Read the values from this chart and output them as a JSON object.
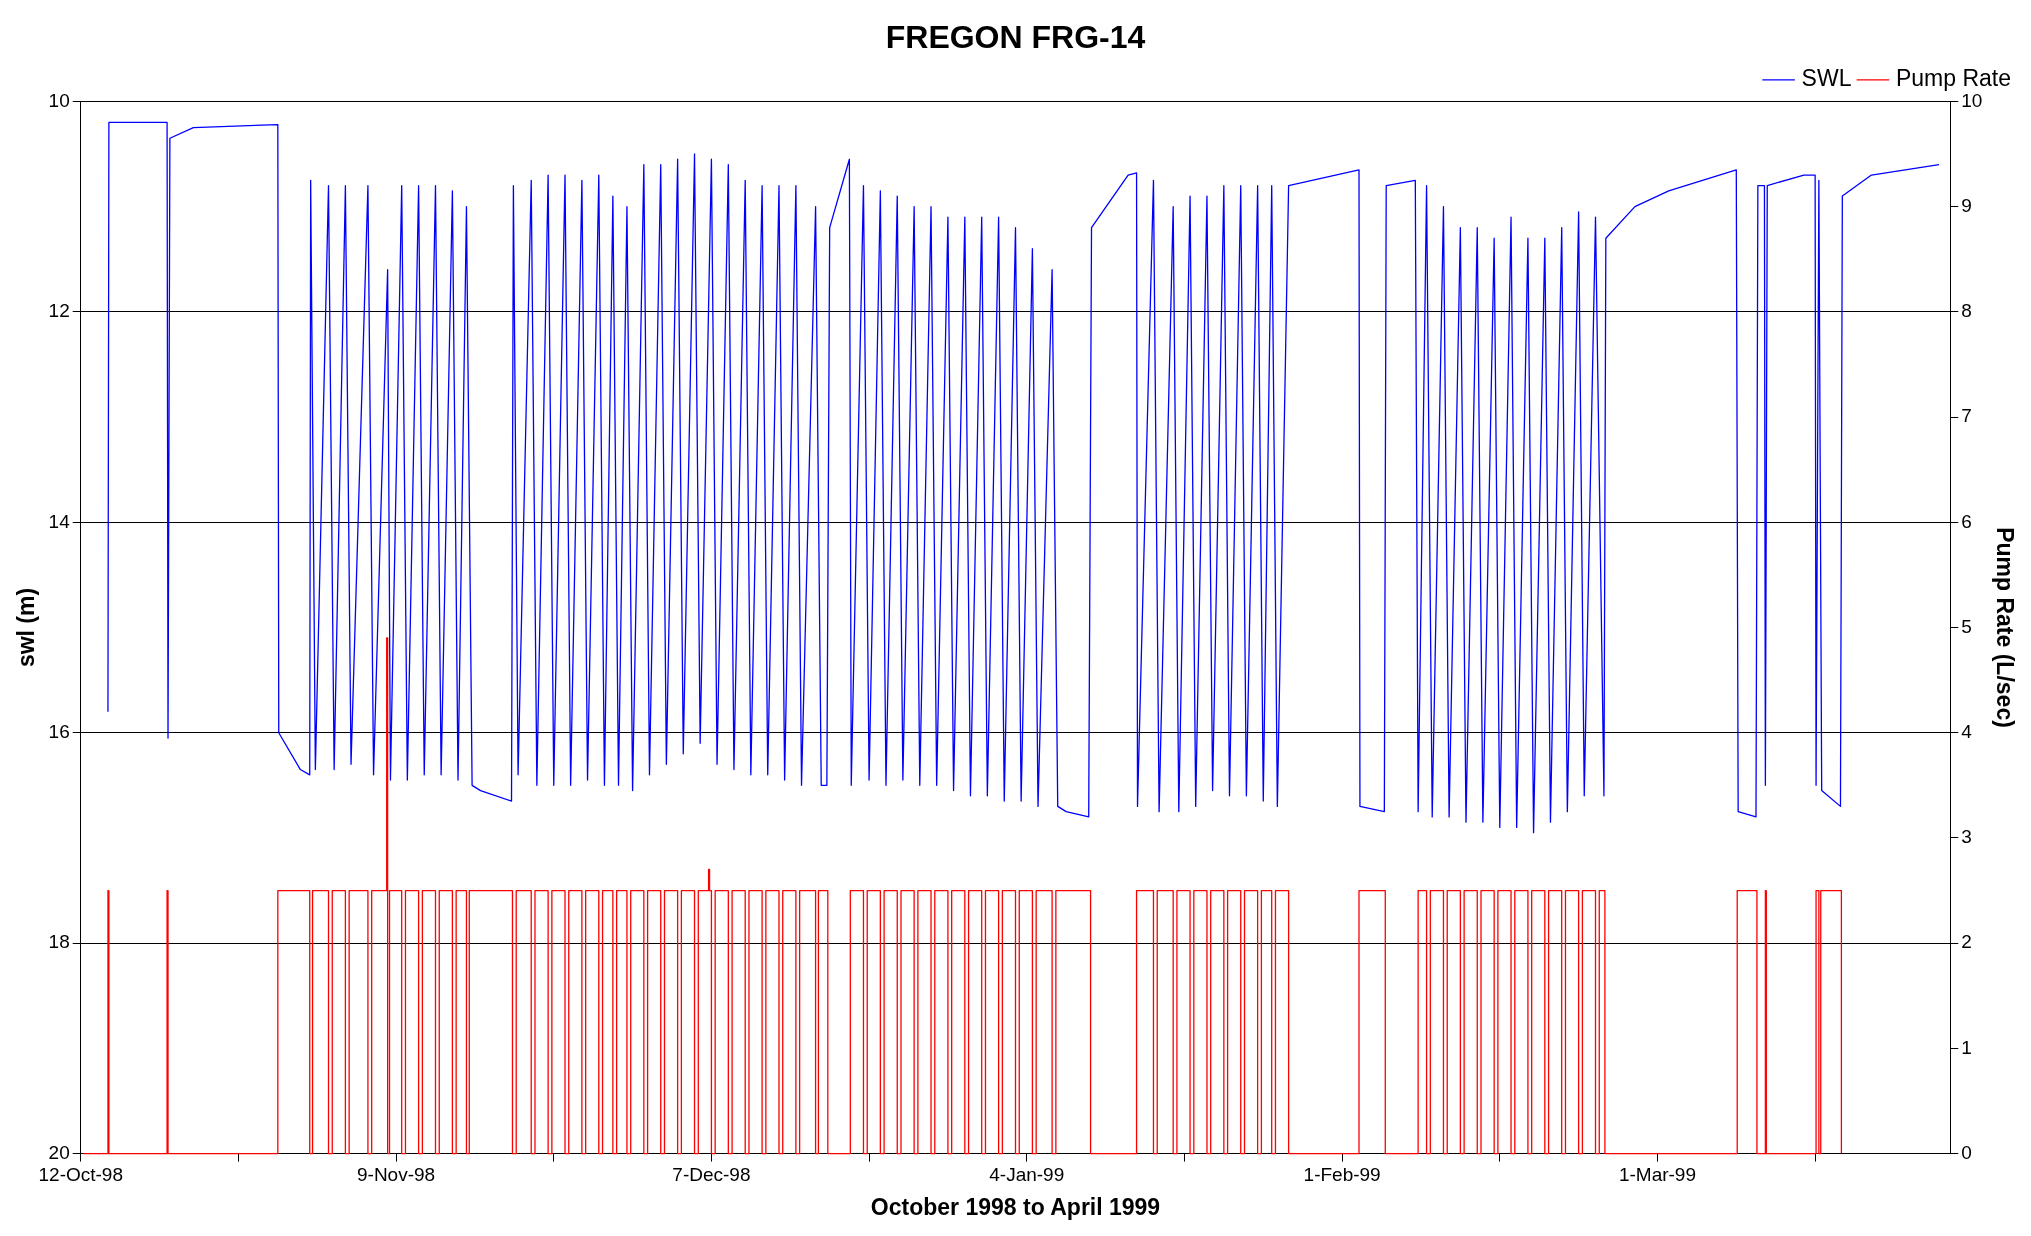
{
  "chart_data": {
    "type": "line",
    "title": "FREGON FRG-14",
    "xlabel": "October 1998 to April 1999",
    "ylabel": "swl (m)",
    "y2label": "Pump Rate (L/sec)",
    "xlim": [
      "1998-10-12",
      "1999-03-27"
    ],
    "xticks": [
      {
        "value": "1998-10-12",
        "label": "12-Oct-98"
      },
      {
        "value": "1998-10-26",
        "label": null
      },
      {
        "value": "1998-11-09",
        "label": "9-Nov-98"
      },
      {
        "value": "1998-11-23",
        "label": null
      },
      {
        "value": "1998-12-07",
        "label": "7-Dec-98"
      },
      {
        "value": "1998-12-21",
        "label": null
      },
      {
        "value": "1999-01-04",
        "label": "4-Jan-99"
      },
      {
        "value": "1999-01-18",
        "label": null
      },
      {
        "value": "1999-02-01",
        "label": "1-Feb-99"
      },
      {
        "value": "1999-02-15",
        "label": null
      },
      {
        "value": "1999-03-01",
        "label": "1-Mar-99"
      },
      {
        "value": "1999-03-15",
        "label": null
      }
    ],
    "ylim": [
      20,
      10
    ],
    "yticks": [
      10,
      12,
      14,
      16,
      18,
      20
    ],
    "y2lim": [
      0,
      10
    ],
    "y2ticks": [
      0,
      1,
      2,
      3,
      4,
      5,
      6,
      7,
      8,
      9,
      10
    ],
    "grid": "y",
    "legend": "top right",
    "marker": "none",
    "line_style": "solid",
    "series": [
      {
        "name": "SWL",
        "type": "line",
        "color": "#0000ff",
        "x": [
          "1998-10-14T10:00",
          "1998-10-14T12:00",
          "1998-10-19T16:00",
          "1998-10-19T18:00",
          "1998-10-19T22:00",
          "1998-10-22T00:00",
          "1998-10-29T12:00",
          "1998-10-29T14:00",
          "1998-10-31T12:00",
          "1998-11-01T08:00",
          "1998-11-01T10:00",
          "1998-11-01T20:00",
          "1998-11-03T00:00",
          "1998-11-03T12:00",
          "1998-11-04T12:00",
          "1998-11-05T00:00",
          "1998-11-06T12:00",
          "1998-11-07T00:00",
          "1998-11-08T06:00",
          "1998-11-08T12:00",
          "1998-11-09T12:00",
          "1998-11-10T00:00",
          "1998-11-11T00:00",
          "1998-11-11T12:00",
          "1998-11-12T12:00",
          "1998-11-13T00:00",
          "1998-11-14T00:00",
          "1998-11-14T12:00",
          "1998-11-15T06:00",
          "1998-11-15T18:00",
          "1998-11-16T12:00",
          "1998-11-19T06:00",
          "1998-11-19T10:00",
          "1998-11-19T20:00",
          "1998-11-21T00:00",
          "1998-11-21T12:00",
          "1998-11-22T12:00",
          "1998-11-23T00:00",
          "1998-11-24T00:00",
          "1998-11-24T12:00",
          "1998-11-25T12:00",
          "1998-11-26T00:00",
          "1998-11-27T00:00",
          "1998-11-27T12:00",
          "1998-11-28T06:00",
          "1998-11-28T18:00",
          "1998-11-29T12:00",
          "1998-11-30T00:00",
          "1998-12-01T00:00",
          "1998-12-01T12:00",
          "1998-12-02T12:00",
          "1998-12-03T00:00",
          "1998-12-04T00:00",
          "1998-12-04T12:00",
          "1998-12-05T12:00",
          "1998-12-06T00:00",
          "1998-12-07T00:00",
          "1998-12-07T12:00",
          "1998-12-08T12:00",
          "1998-12-09T00:00",
          "1998-12-10T00:00",
          "1998-12-10T12:00",
          "1998-12-11T12:00",
          "1998-12-12T00:00",
          "1998-12-13T00:00",
          "1998-12-13T12:00",
          "1998-12-14T12:00",
          "1998-12-15T00:00",
          "1998-12-16T06:00",
          "1998-12-16T18:00",
          "1998-12-17T06:00",
          "1998-12-17T12:00",
          "1998-12-19T06:00",
          "1998-12-19T10:00",
          "1998-12-20T12:00",
          "1998-12-21T00:00",
          "1998-12-22T00:00",
          "1998-12-22T12:00",
          "1998-12-23T12:00",
          "1998-12-24T00:00",
          "1998-12-25T00:00",
          "1998-12-25T12:00",
          "1998-12-26T12:00",
          "1998-12-27T00:00",
          "1998-12-28T00:00",
          "1998-12-28T12:00",
          "1998-12-29T12:00",
          "1998-12-30T00:00",
          "1998-12-31T00:00",
          "1998-12-31T12:00",
          "1999-01-01T12:00",
          "1999-01-02T00:00",
          "1999-01-03T00:00",
          "1999-01-03T12:00",
          "1999-01-04T12:00",
          "1999-01-05T00:00",
          "1999-01-06T06:00",
          "1999-01-06T18:00",
          "1999-01-07T12:00",
          "1999-01-09T12:00",
          "1999-01-09T18:00",
          "1999-01-13T00:00",
          "1999-01-13T18:00",
          "1999-01-13T20:00",
          "1999-01-15T06:00",
          "1999-01-15T18:00",
          "1999-01-17T00:00",
          "1999-01-17T12:00",
          "1999-01-18T12:00",
          "1999-01-19T00:00",
          "1999-01-20T00:00",
          "1999-01-20T12:00",
          "1999-01-21T12:00",
          "1999-01-22T00:00",
          "1999-01-23T00:00",
          "1999-01-23T12:00",
          "1999-01-24T12:00",
          "1999-01-25T00:00",
          "1999-01-25T18:00",
          "1999-01-26T06:00",
          "1999-01-27T06:00",
          "1999-02-02T12:00",
          "1999-02-02T14:00",
          "1999-02-04T18:00",
          "1999-02-04T22:00",
          "1999-02-07T12:00",
          "1999-02-07T18:00",
          "1999-02-08T12:00",
          "1999-02-09T00:00",
          "1999-02-10T00:00",
          "1999-02-10T12:00",
          "1999-02-11T12:00",
          "1999-02-12T00:00",
          "1999-02-13T00:00",
          "1999-02-13T12:00",
          "1999-02-14T12:00",
          "1999-02-15T00:00",
          "1999-02-16T00:00",
          "1999-02-16T12:00",
          "1999-02-17T12:00",
          "1999-02-18T00:00",
          "1999-02-19T00:00",
          "1999-02-19T12:00",
          "1999-02-20T12:00",
          "1999-02-21T00:00",
          "1999-02-22T00:00",
          "1999-02-22T12:00",
          "1999-02-23T12:00",
          "1999-02-24T06:00",
          "1999-02-24T10:00",
          "1999-02-27T00:00",
          "1999-03-02T00:00",
          "1999-03-08T00:00",
          "1999-03-08T04:00",
          "1999-03-09T18:00",
          "1999-03-09T22:00",
          "1999-03-10T12:00",
          "1999-03-10T14:00",
          "1999-03-10T18:00",
          "1999-03-14T00:00",
          "1999-03-15T00:00",
          "1999-03-15T02:00",
          "1999-03-15T08:00",
          "1999-03-15T14:00",
          "1999-03-17T06:00",
          "1999-03-17T10:00",
          "1999-03-20T00:00",
          "1999-03-26T00:00"
        ],
        "values": [
          15.8,
          10.2,
          10.2,
          16.05,
          10.35,
          10.25,
          10.22,
          16.0,
          16.35,
          16.4,
          10.75,
          16.35,
          10.8,
          16.35,
          10.8,
          16.3,
          10.8,
          16.4,
          11.6,
          16.45,
          10.8,
          16.45,
          10.8,
          16.4,
          10.8,
          16.4,
          10.85,
          16.45,
          11.0,
          16.5,
          16.55,
          16.65,
          10.8,
          16.4,
          10.75,
          16.5,
          10.7,
          16.5,
          10.7,
          16.5,
          10.75,
          16.45,
          10.7,
          16.5,
          10.9,
          16.5,
          11.0,
          16.55,
          10.6,
          16.4,
          10.6,
          16.3,
          10.55,
          16.2,
          10.5,
          16.1,
          10.55,
          16.3,
          10.6,
          16.35,
          10.75,
          16.4,
          10.8,
          16.4,
          10.8,
          16.45,
          10.8,
          16.5,
          11.0,
          16.5,
          16.5,
          11.2,
          10.55,
          16.5,
          10.8,
          16.45,
          10.85,
          16.5,
          10.9,
          16.45,
          11.0,
          16.5,
          11.0,
          16.5,
          11.1,
          16.55,
          11.1,
          16.6,
          11.1,
          16.6,
          11.1,
          16.65,
          11.2,
          16.65,
          11.4,
          16.7,
          11.6,
          16.7,
          16.75,
          16.8,
          11.2,
          10.7,
          10.68,
          16.7,
          10.75,
          16.75,
          11.0,
          16.75,
          10.9,
          16.7,
          10.9,
          16.55,
          10.8,
          16.6,
          10.8,
          16.6,
          10.8,
          16.65,
          10.8,
          16.7,
          10.8,
          10.65,
          16.7,
          16.75,
          10.8,
          10.75,
          16.75,
          10.8,
          16.8,
          11.0,
          16.8,
          11.2,
          16.85,
          11.2,
          16.85,
          11.3,
          16.9,
          11.1,
          16.9,
          11.3,
          16.95,
          11.3,
          16.85,
          11.2,
          16.75,
          11.05,
          16.6,
          11.1,
          16.6,
          11.3,
          11.0,
          10.85,
          10.65,
          16.75,
          16.8,
          10.8,
          10.8,
          16.5,
          10.8,
          10.7,
          10.7,
          16.5,
          10.75,
          16.55,
          16.7,
          10.9,
          10.7,
          10.6
        ]
      },
      {
        "name": "Pump Rate",
        "type": "step",
        "axis": "y2",
        "color": "#ff0000",
        "x": [
          "1998-10-12T06:00",
          "1998-10-14T10:00",
          "1998-10-14T12:00",
          "1998-10-19T16:00",
          "1998-10-19T18:00",
          "1998-10-29T12:00",
          "1998-11-01T08:00",
          "1998-11-01T14:00",
          "1998-11-03T00:00",
          "1998-11-03T08:00",
          "1998-11-04T12:00",
          "1998-11-04T20:00",
          "1998-11-06T12:00",
          "1998-11-06T20:00",
          "1998-11-08T04:00",
          "1998-11-08T06:00",
          "1998-11-08T10:00",
          "1998-11-09T12:00",
          "1998-11-09T20:00",
          "1998-11-11T00:00",
          "1998-11-11T08:00",
          "1998-11-12T12:00",
          "1998-11-12T20:00",
          "1998-11-14T00:00",
          "1998-11-14T08:00",
          "1998-11-15T06:00",
          "1998-11-15T12:00",
          "1998-11-19T08:00",
          "1998-11-19T16:00",
          "1998-11-21T00:00",
          "1998-11-21T08:00",
          "1998-11-22T12:00",
          "1998-11-22T20:00",
          "1998-11-24T00:00",
          "1998-11-24T08:00",
          "1998-11-25T12:00",
          "1998-11-25T20:00",
          "1998-11-27T00:00",
          "1998-11-27T08:00",
          "1998-11-28T06:00",
          "1998-11-28T14:00",
          "1998-11-29T12:00",
          "1998-11-29T20:00",
          "1998-12-01T00:00",
          "1998-12-01T08:00",
          "1998-12-02T12:00",
          "1998-12-02T20:00",
          "1998-12-04T00:00",
          "1998-12-04T08:00",
          "1998-12-05T12:00",
          "1998-12-05T20:00",
          "1998-12-06T18:00",
          "1998-12-06T20:00",
          "1998-12-07T00:00",
          "1998-12-07T08:00",
          "1998-12-08T12:00",
          "1998-12-08T20:00",
          "1998-12-10T00:00",
          "1998-12-10T08:00",
          "1998-12-11T12:00",
          "1998-12-11T20:00",
          "1998-12-13T00:00",
          "1998-12-13T08:00",
          "1998-12-14T12:00",
          "1998-12-14T20:00",
          "1998-12-16T06:00",
          "1998-12-16T12:00",
          "1998-12-17T08:00",
          "1998-12-19T08:00",
          "1998-12-20T12:00",
          "1998-12-20T20:00",
          "1998-12-22T00:00",
          "1998-12-22T08:00",
          "1998-12-23T12:00",
          "1998-12-23T20:00",
          "1998-12-25T00:00",
          "1998-12-25T08:00",
          "1998-12-26T12:00",
          "1998-12-26T20:00",
          "1998-12-28T00:00",
          "1998-12-28T08:00",
          "1998-12-29T12:00",
          "1998-12-29T20:00",
          "1998-12-31T00:00",
          "1998-12-31T08:00",
          "1999-01-01T12:00",
          "1999-01-01T20:00",
          "1999-01-03T00:00",
          "1999-01-03T08:00",
          "1999-01-04T12:00",
          "1999-01-04T20:00",
          "1999-01-06T06:00",
          "1999-01-06T14:00",
          "1999-01-09T16:00",
          "1999-01-13T18:00",
          "1999-01-15T06:00",
          "1999-01-15T14:00",
          "1999-01-17T00:00",
          "1999-01-17T08:00",
          "1999-01-18T12:00",
          "1999-01-18T20:00",
          "1999-01-20T00:00",
          "1999-01-20T08:00",
          "1999-01-21T12:00",
          "1999-01-21T20:00",
          "1999-01-23T00:00",
          "1999-01-23T08:00",
          "1999-01-24T12:00",
          "1999-01-24T20:00",
          "1999-01-25T18:00",
          "1999-01-26T02:00",
          "1999-01-27T06:00",
          "1999-02-02T12:00",
          "1999-02-04T20:00",
          "1999-02-07T18:00",
          "1999-02-08T12:00",
          "1999-02-08T20:00",
          "1999-02-10T00:00",
          "1999-02-10T08:00",
          "1999-02-11T12:00",
          "1999-02-11T20:00",
          "1999-02-13T00:00",
          "1999-02-13T08:00",
          "1999-02-14T12:00",
          "1999-02-14T20:00",
          "1999-02-16T00:00",
          "1999-02-16T08:00",
          "1999-02-17T12:00",
          "1999-02-17T20:00",
          "1999-02-19T00:00",
          "1999-02-19T08:00",
          "1999-02-20T12:00",
          "1999-02-20T20:00",
          "1999-02-22T00:00",
          "1999-02-22T08:00",
          "1999-02-23T12:00",
          "1999-02-23T20:00",
          "1999-02-24T08:00",
          "1999-03-08T02:00",
          "1999-03-09T20:00",
          "1999-03-10T14:00",
          "1999-03-10T16:00",
          "1999-03-15T02:00",
          "1999-03-15T08:00",
          "1999-03-15T12:00",
          "1999-03-17T08:00"
        ],
        "values": [
          0,
          2.5,
          0,
          2.5,
          0,
          2.5,
          0,
          2.5,
          0,
          2.5,
          0,
          2.5,
          0,
          2.5,
          4.9,
          0,
          2.5,
          0,
          2.5,
          0,
          2.5,
          0,
          2.5,
          0,
          2.5,
          0,
          2.5,
          0,
          2.5,
          0,
          2.5,
          0,
          2.5,
          0,
          2.5,
          0,
          2.5,
          0,
          2.5,
          0,
          2.5,
          0,
          2.5,
          0,
          2.5,
          0,
          2.5,
          0,
          2.5,
          0,
          2.5,
          2.7,
          2.5,
          0,
          2.5,
          0,
          2.5,
          0,
          2.5,
          0,
          2.5,
          0,
          2.5,
          0,
          2.5,
          0,
          2.5,
          0,
          2.5,
          0,
          2.5,
          0,
          2.5,
          0,
          2.5,
          0,
          2.5,
          0,
          2.5,
          0,
          2.5,
          0,
          2.5,
          0,
          2.5,
          0,
          2.5,
          0,
          2.5,
          0,
          2.5,
          0,
          2.5,
          0,
          2.5,
          0,
          2.5,
          0,
          2.5,
          0,
          2.5,
          0,
          2.5,
          0,
          2.5,
          0,
          2.5,
          0,
          2.5,
          0,
          2.5,
          0,
          2.5,
          0,
          2.5,
          0,
          2.5,
          0,
          2.5,
          0,
          2.5,
          0,
          2.5,
          0,
          2.5,
          0,
          2.5,
          0,
          2.5,
          0,
          2.5,
          0,
          2.5,
          0,
          2.5,
          0,
          2.5,
          0,
          2.5,
          0,
          2.5,
          0,
          2.5,
          0,
          2.5,
          0
        ]
      }
    ]
  }
}
